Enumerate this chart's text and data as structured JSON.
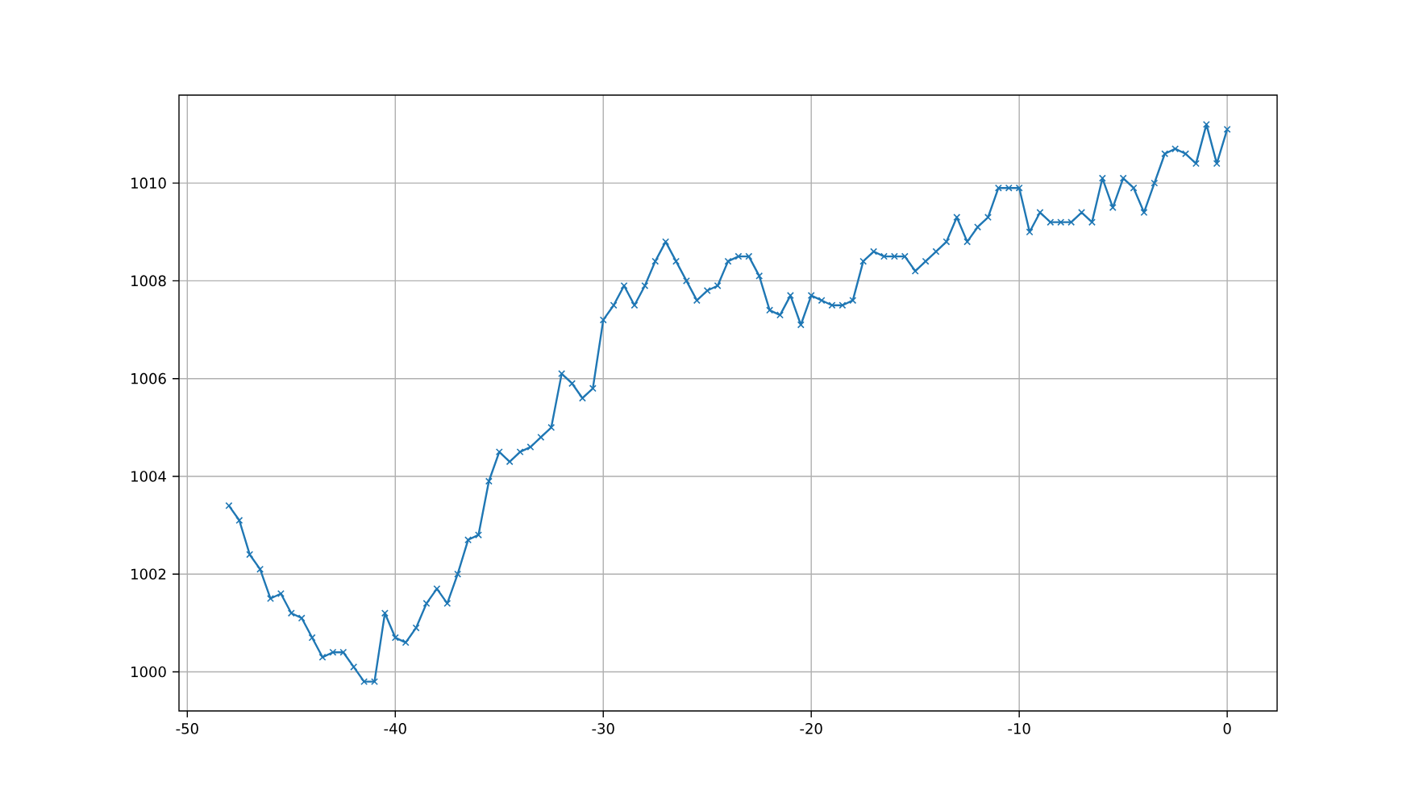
{
  "chart_data": {
    "type": "line",
    "color": "#1f77b4",
    "marker": "cross",
    "line_style": "solid",
    "grid": true,
    "x": [
      -48,
      -47.5,
      -47,
      -46.5,
      -46,
      -45.5,
      -45,
      -44.5,
      -44,
      -43.5,
      -43,
      -42.5,
      -42,
      -41.5,
      -41,
      -40.5,
      -40,
      -39.5,
      -39,
      -38.5,
      -38,
      -37.5,
      -37,
      -36.5,
      -36,
      -35.5,
      -35,
      -34.5,
      -34,
      -33.5,
      -33,
      -32.5,
      -32,
      -31.5,
      -31,
      -30.5,
      -30,
      -29.5,
      -29,
      -28.5,
      -28,
      -27.5,
      -27,
      -26.5,
      -26,
      -25.5,
      -25,
      -24.5,
      -24,
      -23.5,
      -23,
      -22.5,
      -22,
      -21.5,
      -21,
      -20.5,
      -20,
      -19.5,
      -19,
      -18.5,
      -18,
      -17.5,
      -17,
      -16.5,
      -16,
      -15.5,
      -15,
      -14.5,
      -14,
      -13.5,
      -13,
      -12.5,
      -12,
      -11.5,
      -11,
      -10.5,
      -10,
      -9.5,
      -9,
      -8.5,
      -8,
      -7.5,
      -7,
      -6.5,
      -6,
      -5.5,
      -5,
      -4.5,
      -4,
      -3.5,
      -3,
      -2.5,
      -2,
      -1.5,
      -1,
      -0.5,
      0
    ],
    "values": [
      1003.4,
      1003.1,
      1002.4,
      1002.1,
      1001.5,
      1001.6,
      1001.2,
      1001.1,
      1000.7,
      1000.3,
      1000.4,
      1000.4,
      1000.1,
      999.8,
      999.8,
      1001.2,
      1000.7,
      1000.6,
      1000.9,
      1001.4,
      1001.7,
      1001.4,
      1002.0,
      1002.7,
      1002.8,
      1003.9,
      1004.5,
      1004.3,
      1004.5,
      1004.6,
      1004.8,
      1005.0,
      1006.1,
      1005.9,
      1005.6,
      1005.8,
      1007.2,
      1007.5,
      1007.9,
      1007.5,
      1007.9,
      1008.4,
      1008.8,
      1008.4,
      1008.0,
      1007.6,
      1007.8,
      1007.9,
      1008.4,
      1008.5,
      1008.5,
      1008.1,
      1007.4,
      1007.3,
      1007.7,
      1007.1,
      1007.7,
      1007.6,
      1007.5,
      1007.5,
      1007.6,
      1008.4,
      1008.6,
      1008.5,
      1008.5,
      1008.5,
      1008.2,
      1008.4,
      1008.6,
      1008.8,
      1009.3,
      1008.8,
      1009.1,
      1009.3,
      1009.9,
      1009.9,
      1009.9,
      1009.0,
      1009.4,
      1009.2,
      1009.2,
      1009.2,
      1009.4,
      1009.2,
      1010.1,
      1009.5,
      1010.1,
      1009.9,
      1009.4,
      1010.0,
      1010.6,
      1010.7,
      1010.6,
      1010.4,
      1011.2,
      1010.4,
      1011.1
    ],
    "xlim": [
      -50.4,
      2.4
    ],
    "ylim": [
      999.2,
      1011.8
    ],
    "xticks": [
      -50,
      -40,
      -30,
      -20,
      -10,
      0
    ],
    "yticks": [
      1000,
      1002,
      1004,
      1006,
      1008,
      1010
    ]
  }
}
